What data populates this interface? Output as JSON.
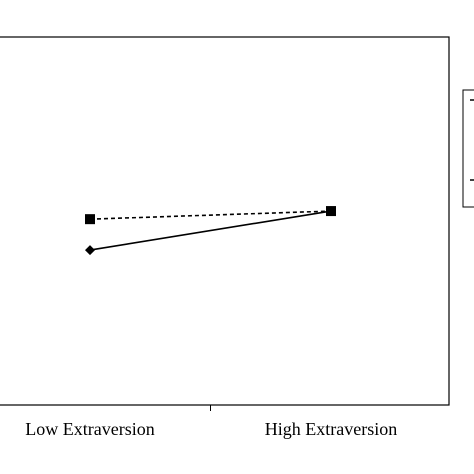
{
  "chart_data": {
    "type": "line",
    "categories": [
      "Low Extraversion",
      "High Extraversion"
    ],
    "series": [
      {
        "color": "#000000",
        "dash": true,
        "marker": "square",
        "values": [
          50.5,
          52.7
        ]
      },
      {
        "color": "#000000",
        "dash": false,
        "marker": "diamond",
        "values": [
          42.1,
          52.7
        ]
      }
    ],
    "ylim": [
      0,
      100
    ]
  }
}
